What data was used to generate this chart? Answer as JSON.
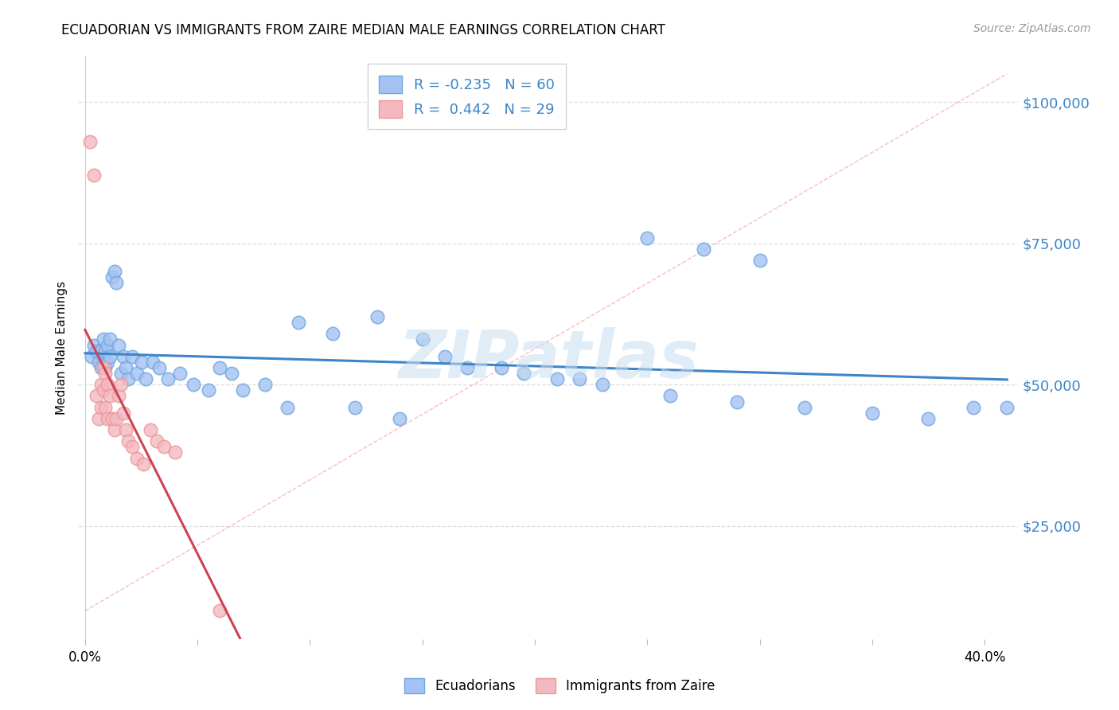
{
  "title": "ECUADORIAN VS IMMIGRANTS FROM ZAIRE MEDIAN MALE EARNINGS CORRELATION CHART",
  "source": "Source: ZipAtlas.com",
  "ylabel": "Median Male Earnings",
  "xlim": [
    -0.003,
    0.415
  ],
  "ylim": [
    5000,
    108000
  ],
  "yticks": [
    25000,
    50000,
    75000,
    100000
  ],
  "ytick_labels": [
    "$25,000",
    "$50,000",
    "$75,000",
    "$100,000"
  ],
  "xticks": [
    0.0,
    0.05,
    0.1,
    0.15,
    0.2,
    0.25,
    0.3,
    0.35,
    0.4
  ],
  "blue_dot_color": "#a4c2f4",
  "blue_dot_edge": "#6fa8dc",
  "pink_dot_color": "#f4b8c1",
  "pink_dot_edge": "#ea9999",
  "blue_line_color": "#3d85c8",
  "pink_line_color": "#cc4455",
  "dash_line_color": "#f4a0b0",
  "blue_label": "R = -0.235   N = 60",
  "pink_label": "R =  0.442   N = 29",
  "watermark": "ZIPatlas",
  "legend_ecuadorians": "Ecuadorians",
  "legend_zaire": "Immigrants from Zaire",
  "blue_x": [
    0.003,
    0.004,
    0.005,
    0.006,
    0.007,
    0.007,
    0.008,
    0.008,
    0.009,
    0.009,
    0.01,
    0.01,
    0.011,
    0.011,
    0.012,
    0.013,
    0.014,
    0.015,
    0.016,
    0.017,
    0.018,
    0.019,
    0.021,
    0.023,
    0.025,
    0.027,
    0.03,
    0.033,
    0.037,
    0.042,
    0.048,
    0.055,
    0.065,
    0.08,
    0.095,
    0.11,
    0.13,
    0.15,
    0.17,
    0.195,
    0.22,
    0.25,
    0.275,
    0.3,
    0.16,
    0.185,
    0.21,
    0.23,
    0.26,
    0.29,
    0.32,
    0.35,
    0.375,
    0.395,
    0.06,
    0.07,
    0.09,
    0.12,
    0.14,
    0.41
  ],
  "blue_y": [
    55000,
    57000,
    56000,
    54000,
    56000,
    53000,
    58000,
    55000,
    56000,
    53000,
    57000,
    54000,
    58000,
    55000,
    69000,
    70000,
    68000,
    57000,
    52000,
    55000,
    53000,
    51000,
    55000,
    52000,
    54000,
    51000,
    54000,
    53000,
    51000,
    52000,
    50000,
    49000,
    52000,
    50000,
    61000,
    59000,
    62000,
    58000,
    53000,
    52000,
    51000,
    76000,
    74000,
    72000,
    55000,
    53000,
    51000,
    50000,
    48000,
    47000,
    46000,
    45000,
    44000,
    46000,
    53000,
    49000,
    46000,
    46000,
    44000,
    46000
  ],
  "pink_x": [
    0.002,
    0.004,
    0.005,
    0.006,
    0.007,
    0.007,
    0.008,
    0.008,
    0.009,
    0.009,
    0.01,
    0.01,
    0.011,
    0.012,
    0.013,
    0.014,
    0.015,
    0.016,
    0.017,
    0.018,
    0.019,
    0.021,
    0.023,
    0.026,
    0.029,
    0.032,
    0.035,
    0.04,
    0.06
  ],
  "pink_y": [
    93000,
    87000,
    48000,
    44000,
    50000,
    46000,
    53000,
    49000,
    52000,
    46000,
    50000,
    44000,
    48000,
    44000,
    42000,
    44000,
    48000,
    50000,
    45000,
    42000,
    40000,
    39000,
    37000,
    36000,
    42000,
    40000,
    39000,
    38000,
    10000
  ]
}
